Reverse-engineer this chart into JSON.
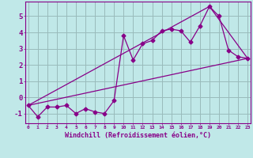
{
  "xlabel": "Windchill (Refroidissement éolien,°C)",
  "bg_color": "#c0e8e8",
  "line_color": "#880088",
  "grid_color": "#99bbbb",
  "x_ticks": [
    0,
    1,
    2,
    3,
    4,
    5,
    6,
    7,
    8,
    9,
    10,
    11,
    12,
    13,
    14,
    15,
    16,
    17,
    18,
    19,
    20,
    21,
    22,
    23
  ],
  "y_ticks": [
    -1,
    0,
    1,
    2,
    3,
    4,
    5
  ],
  "xlim": [
    -0.3,
    23.3
  ],
  "ylim": [
    -1.6,
    5.9
  ],
  "zigzag_x": [
    0,
    1,
    2,
    3,
    4,
    5,
    6,
    7,
    8,
    9,
    10,
    11,
    12,
    13,
    14,
    15,
    16,
    17,
    18,
    19,
    20,
    21,
    22,
    23
  ],
  "zigzag_y": [
    -0.5,
    -1.2,
    -0.6,
    -0.6,
    -0.5,
    -1.0,
    -0.7,
    -0.9,
    -1.0,
    -0.2,
    3.8,
    2.3,
    3.3,
    3.5,
    4.1,
    4.2,
    4.1,
    3.4,
    4.4,
    5.6,
    5.0,
    2.9,
    2.5,
    2.4
  ],
  "line1_x": [
    0,
    23
  ],
  "line1_y": [
    -0.5,
    2.4
  ],
  "line2_x": [
    0,
    19
  ],
  "line2_y": [
    -0.5,
    5.6
  ],
  "line3_x": [
    19,
    23
  ],
  "line3_y": [
    5.6,
    2.4
  ]
}
